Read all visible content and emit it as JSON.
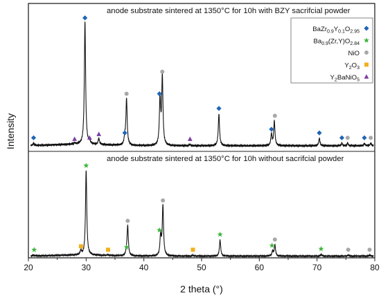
{
  "chart_data": {
    "type": "line",
    "xlabel": "2 theta (°)",
    "ylabel": "Intensity",
    "xlim": [
      20,
      80
    ],
    "xticks": [
      20,
      30,
      40,
      50,
      60,
      70,
      80
    ],
    "grid": false,
    "legend_placement": "top-right",
    "marker_colors": {
      "BZY": "#1f64b8",
      "BZYNi": "#3db63d",
      "NiO": "#a8a8a8",
      "Y2O3": "#f2b01e",
      "Y2BaNiO5": "#7a3ea2"
    },
    "legend": [
      {
        "key": "BZY",
        "label": "BaZr0.9Y0.1O2.95",
        "main": "BaZr",
        "subs": [
          [
            "0.9",
            "Y"
          ],
          [
            "0.1",
            "O"
          ],
          [
            "2.95",
            ""
          ]
        ],
        "marker": "diamond"
      },
      {
        "key": "BZYNi",
        "label": "Ba0.9(Zr,Y)O2.84",
        "main": "Ba",
        "subs": [
          [
            "0.9",
            "(Zr,Y)O"
          ],
          [
            "2.84",
            ""
          ]
        ],
        "marker": "star"
      },
      {
        "key": "NiO",
        "label": "NiO",
        "main": "NiO",
        "subs": [],
        "marker": "circle"
      },
      {
        "key": "Y2O3",
        "label": "Y2O3",
        "main": "Y",
        "subs": [
          [
            "2",
            "O"
          ],
          [
            "3",
            ""
          ]
        ],
        "marker": "square"
      },
      {
        "key": "Y2BaNiO5",
        "label": "Y2BaNiO5",
        "main": "Y",
        "subs": [
          [
            "2",
            "BaNiO"
          ],
          [
            "5",
            ""
          ]
        ],
        "marker": "triangle"
      }
    ],
    "series": [
      {
        "name": "anode substrate sintered at 1350°C for 10h with BZY sacrifcial powder",
        "peaks": [
          {
            "x": 20.9,
            "h": 0.02
          },
          {
            "x": 28.0,
            "h": 0.01
          },
          {
            "x": 29.8,
            "h": 1.0
          },
          {
            "x": 30.6,
            "h": 0.02
          },
          {
            "x": 32.2,
            "h": 0.05
          },
          {
            "x": 36.7,
            "h": 0.06
          },
          {
            "x": 37.0,
            "h": 0.38
          },
          {
            "x": 42.8,
            "h": 0.38
          },
          {
            "x": 43.2,
            "h": 0.56
          },
          {
            "x": 48.0,
            "h": 0.01
          },
          {
            "x": 53.0,
            "h": 0.26
          },
          {
            "x": 62.1,
            "h": 0.09
          },
          {
            "x": 62.6,
            "h": 0.2
          },
          {
            "x": 70.4,
            "h": 0.06
          },
          {
            "x": 74.3,
            "h": 0.02
          },
          {
            "x": 75.3,
            "h": 0.02
          },
          {
            "x": 78.2,
            "h": 0.02
          },
          {
            "x": 79.3,
            "h": 0.02
          }
        ],
        "markers": [
          {
            "x": 20.9,
            "type": "BZY",
            "h": 0.02
          },
          {
            "x": 28.0,
            "type": "Y2BaNiO5",
            "h": 0.01
          },
          {
            "x": 29.8,
            "type": "BZY",
            "h": 1.0
          },
          {
            "x": 30.6,
            "type": "Y2BaNiO5",
            "h": 0.02
          },
          {
            "x": 32.2,
            "type": "Y2BaNiO5",
            "h": 0.05
          },
          {
            "x": 36.7,
            "type": "BZY",
            "h": 0.06
          },
          {
            "x": 37.0,
            "type": "NiO",
            "h": 0.38
          },
          {
            "x": 42.7,
            "type": "BZY",
            "h": 0.38
          },
          {
            "x": 43.2,
            "type": "NiO",
            "h": 0.56
          },
          {
            "x": 48.0,
            "type": "Y2BaNiO5",
            "h": 0.01
          },
          {
            "x": 53.0,
            "type": "BZY",
            "h": 0.26
          },
          {
            "x": 62.1,
            "type": "BZY",
            "h": 0.09
          },
          {
            "x": 62.7,
            "type": "NiO",
            "h": 0.2
          },
          {
            "x": 70.4,
            "type": "BZY",
            "h": 0.06
          },
          {
            "x": 74.3,
            "type": "BZY",
            "h": 0.02
          },
          {
            "x": 75.3,
            "type": "NiO",
            "h": 0.02
          },
          {
            "x": 78.2,
            "type": "BZY",
            "h": 0.02
          },
          {
            "x": 79.3,
            "type": "NiO",
            "h": 0.02
          }
        ]
      },
      {
        "name": "anode substrate sintered at 1350°C for 10h without sacrifcial powder",
        "peaks": [
          {
            "x": 20.9,
            "h": 0.01
          },
          {
            "x": 29.1,
            "h": 0.05
          },
          {
            "x": 30.0,
            "h": 1.0
          },
          {
            "x": 33.8,
            "h": 0.01
          },
          {
            "x": 37.0,
            "h": 0.04
          },
          {
            "x": 37.2,
            "h": 0.35
          },
          {
            "x": 42.9,
            "h": 0.24
          },
          {
            "x": 43.3,
            "h": 0.59
          },
          {
            "x": 48.5,
            "h": 0.01
          },
          {
            "x": 53.2,
            "h": 0.19
          },
          {
            "x": 62.3,
            "h": 0.06
          },
          {
            "x": 62.7,
            "h": 0.13
          },
          {
            "x": 70.7,
            "h": 0.02
          },
          {
            "x": 75.4,
            "h": 0.01
          },
          {
            "x": 79.1,
            "h": 0.01
          }
        ],
        "markers": [
          {
            "x": 21.0,
            "type": "BZYNi",
            "h": 0.01
          },
          {
            "x": 29.1,
            "type": "Y2O3",
            "h": 0.05
          },
          {
            "x": 30.0,
            "type": "BZYNi",
            "h": 1.0
          },
          {
            "x": 33.8,
            "type": "Y2O3",
            "h": 0.01
          },
          {
            "x": 37.0,
            "type": "BZYNi",
            "h": 0.04
          },
          {
            "x": 37.2,
            "type": "NiO",
            "h": 0.35
          },
          {
            "x": 42.7,
            "type": "BZYNi",
            "h": 0.24
          },
          {
            "x": 43.3,
            "type": "NiO",
            "h": 0.59
          },
          {
            "x": 48.5,
            "type": "Y2O3",
            "h": 0.01
          },
          {
            "x": 53.2,
            "type": "BZYNi",
            "h": 0.19
          },
          {
            "x": 62.2,
            "type": "BZYNi",
            "h": 0.06
          },
          {
            "x": 62.7,
            "type": "NiO",
            "h": 0.13
          },
          {
            "x": 70.7,
            "type": "BZYNi",
            "h": 0.02
          },
          {
            "x": 75.4,
            "type": "NiO",
            "h": 0.01
          },
          {
            "x": 79.1,
            "type": "NiO",
            "h": 0.01
          }
        ]
      }
    ]
  }
}
